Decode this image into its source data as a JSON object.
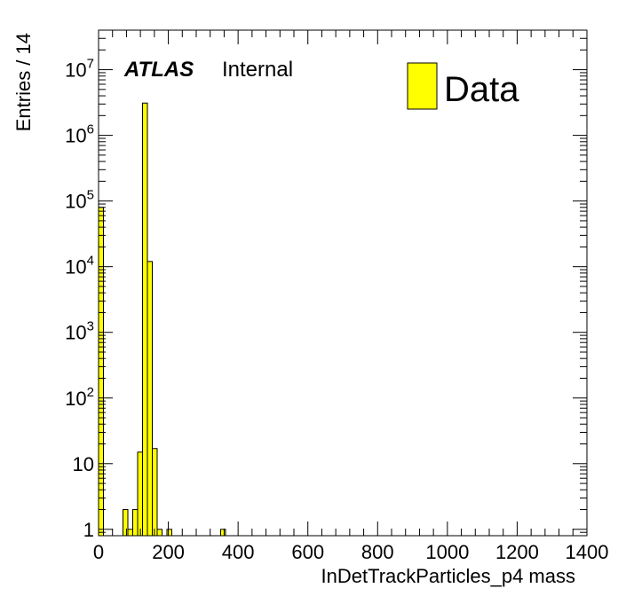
{
  "chart_data": {
    "type": "bar",
    "xlabel": "InDetTrackParticles_p4 mass",
    "ylabel": "Entries / 14",
    "xlim": [
      0,
      1400
    ],
    "ylim": [
      0.8,
      40000000
    ],
    "log_y": true,
    "grid": false,
    "legend_position": "top-right",
    "fill_color": "#ffff00",
    "edge_color": "#000000",
    "bin_width": 14,
    "bins": [
      {
        "x": 0,
        "value": 80000
      },
      {
        "x": 70,
        "value": 2
      },
      {
        "x": 84,
        "value": 1
      },
      {
        "x": 98,
        "value": 2
      },
      {
        "x": 112,
        "value": 15
      },
      {
        "x": 126,
        "value": 3100000
      },
      {
        "x": 140,
        "value": 12000
      },
      {
        "x": 154,
        "value": 17
      },
      {
        "x": 168,
        "value": 1
      },
      {
        "x": 196,
        "value": 1
      },
      {
        "x": 350,
        "value": 1
      }
    ],
    "x_ticks": [
      {
        "value": 0,
        "label": "0"
      },
      {
        "value": 200,
        "label": "200"
      },
      {
        "value": 400,
        "label": "400"
      },
      {
        "value": 600,
        "label": "600"
      },
      {
        "value": 800,
        "label": "800"
      },
      {
        "value": 1000,
        "label": "1000"
      },
      {
        "value": 1200,
        "label": "1200"
      },
      {
        "value": 1400,
        "label": "1400"
      }
    ],
    "y_ticks": [
      {
        "value": 1,
        "base": "1",
        "exp": ""
      },
      {
        "value": 10,
        "base": "10",
        "exp": ""
      },
      {
        "value": 100,
        "base": "10",
        "exp": "2"
      },
      {
        "value": 1000,
        "base": "10",
        "exp": "3"
      },
      {
        "value": 10000,
        "base": "10",
        "exp": "4"
      },
      {
        "value": 100000,
        "base": "10",
        "exp": "5"
      },
      {
        "value": 1000000,
        "base": "10",
        "exp": "6"
      },
      {
        "value": 10000000,
        "base": "10",
        "exp": "7"
      }
    ],
    "atlas_label": "ATLAS",
    "atlas_sublabel": "Internal",
    "legend": [
      {
        "name": "Data",
        "color": "#ffff00"
      }
    ]
  }
}
